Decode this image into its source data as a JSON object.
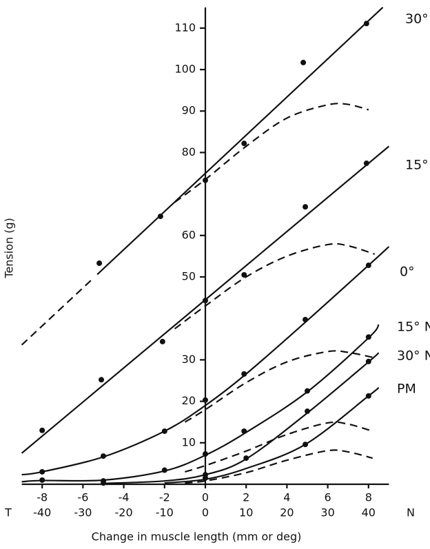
{
  "chart_data": {
    "type": "line",
    "x_label": "Change in muscle length (mm or deg)",
    "y_label": "Tension (g)",
    "xlim": [
      -9,
      9
    ],
    "xticks": [
      -8,
      -6,
      -4,
      -2,
      0,
      2,
      4,
      6,
      8
    ],
    "x2lim": [
      -45,
      45
    ],
    "x2ticks": [
      -40,
      -30,
      -20,
      -10,
      0,
      10,
      20,
      30,
      40
    ],
    "x2_left_label": "T",
    "x2_right_label": "N",
    "ylim": [
      0,
      115
    ],
    "yticks": [
      10,
      20,
      30,
      50,
      60,
      80,
      90,
      100,
      110
    ],
    "series": [
      {
        "name": "30° T",
        "color": "#111111",
        "x": [
          -5.2,
          -2.2,
          0,
          1.9,
          4.8,
          7.9
        ],
        "values": [
          53.3,
          64.6,
          73.3,
          82.2,
          101.7,
          111.1
        ],
        "line_x": [
          -5.3,
          8.7
        ],
        "line_values": [
          50.6,
          115
        ],
        "extension_x": [
          -9,
          -5.6
        ],
        "extension_values": [
          33.6,
          49.2
        ],
        "dashed_x": [
          -1.5,
          0,
          2,
          4,
          6,
          7,
          8
        ],
        "dashed_values": [
          68,
          73.5,
          81.5,
          88.3,
          91.5,
          91.6,
          90.3
        ]
      },
      {
        "name": "15° T",
        "color": "#111111",
        "x": [
          -8,
          -5.1,
          -2.1,
          0,
          1.9,
          4.9,
          7.9
        ],
        "values": [
          13,
          25.2,
          34.4,
          44.3,
          50.5,
          66.9,
          77.4
        ],
        "line_x": [
          -9,
          9
        ],
        "line_values": [
          7.5,
          81.5
        ],
        "dashed_x": [
          -1.5,
          0,
          2,
          4,
          6,
          7,
          8.3
        ],
        "dashed_values": [
          37.5,
          43,
          50,
          55,
          57.8,
          57.5,
          55.5
        ]
      },
      {
        "name": "0°",
        "color": "#111111",
        "x": [
          -8,
          -5,
          -2,
          0,
          1.9,
          4.9,
          8
        ],
        "values": [
          3,
          6.8,
          12.8,
          20.3,
          26.6,
          39.7,
          52.8
        ],
        "line_x": [
          -9,
          -8,
          -5,
          -2,
          0,
          2,
          5,
          8,
          9
        ],
        "line_values": [
          2.3,
          3,
          6.6,
          12.8,
          19,
          26.6,
          39.5,
          52.8,
          57.3
        ],
        "dashed_x": [
          -1,
          0,
          2,
          4,
          6,
          7,
          8.3
        ],
        "dashed_values": [
          15,
          18,
          24.5,
          29.5,
          32,
          31.8,
          30.5
        ]
      },
      {
        "name": "15° N",
        "color": "#111111",
        "x": [
          -8,
          -5,
          -2,
          0,
          1.9,
          5,
          8
        ],
        "values": [
          1,
          0.8,
          3.4,
          7.3,
          12.8,
          22.5,
          35.5
        ],
        "line_x": [
          -9,
          -8,
          -5,
          -2,
          0,
          2,
          5,
          8,
          8.5
        ],
        "line_values": [
          0.6,
          0.9,
          1,
          3.2,
          7,
          12.5,
          22.3,
          35.3,
          38.5
        ],
        "dashed_x": [
          -1,
          0,
          2,
          4,
          6,
          7,
          8.2
        ],
        "dashed_values": [
          3,
          4.5,
          8,
          12,
          14.8,
          14.5,
          12.8
        ]
      },
      {
        "name": "30° N",
        "color": "#111111",
        "x": [
          0,
          2,
          5,
          8
        ],
        "values": [
          2.3,
          6.3,
          17.6,
          29.6
        ],
        "line_x": [
          -5,
          -2,
          0,
          2,
          5,
          8,
          8.5
        ],
        "line_values": [
          0.2,
          0.8,
          2.3,
          6.1,
          17.2,
          29.5,
          31.7
        ],
        "dashed_x": [
          -1,
          0,
          2,
          4,
          6,
          7,
          8.2
        ],
        "dashed_values": [
          0.3,
          0.8,
          2.8,
          5.8,
          8.1,
          7.8,
          6.3
        ]
      },
      {
        "name": "PM",
        "color": "#111111",
        "x": [
          -5,
          0,
          4.9,
          8
        ],
        "values": [
          0.3,
          1.5,
          9.6,
          21.3
        ],
        "line_x": [
          -2,
          0,
          2,
          4.9,
          8,
          8.5
        ],
        "line_values": [
          0.3,
          1.2,
          3.8,
          9.6,
          21.3,
          23.3
        ]
      }
    ]
  }
}
